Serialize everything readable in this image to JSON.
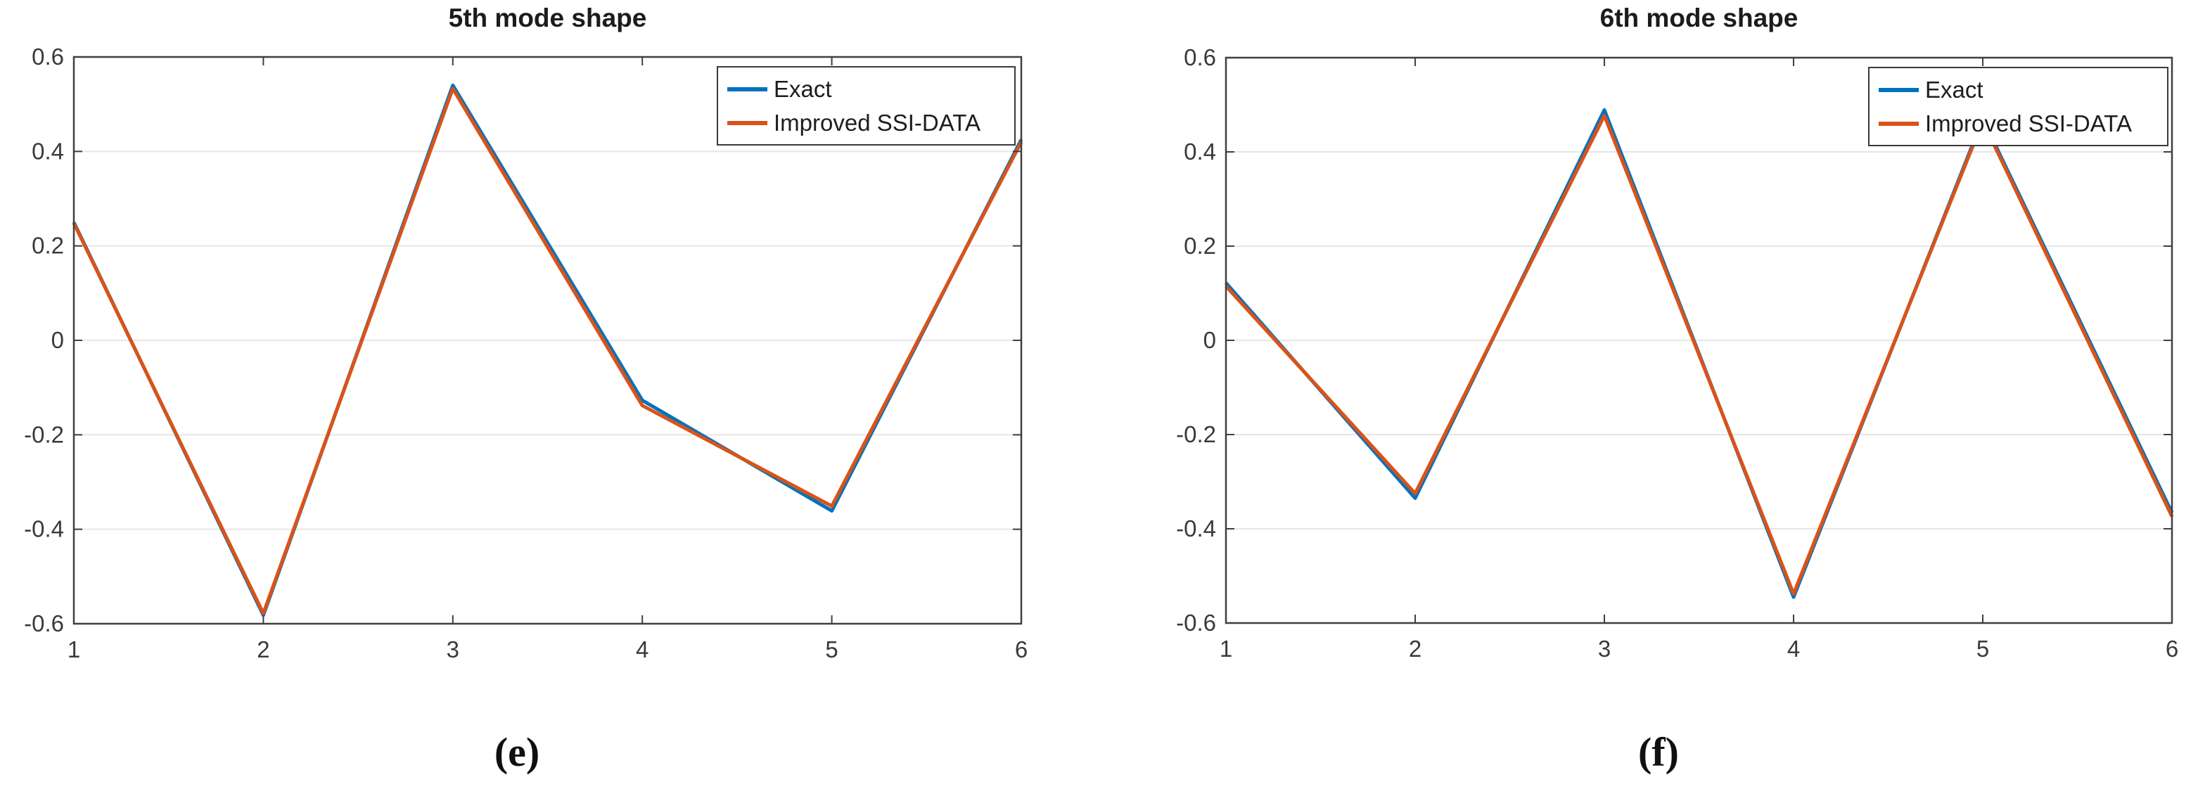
{
  "page": {
    "background": "#ffffff"
  },
  "chart_data": [
    {
      "type": "line",
      "title": "5th mode shape",
      "caption": "(e)",
      "x": [
        1,
        2,
        3,
        4,
        5,
        6
      ],
      "xlim": [
        1,
        6
      ],
      "ylim": [
        -0.6,
        0.6
      ],
      "xtick_labels": [
        "1",
        "2",
        "3",
        "4",
        "5",
        "6"
      ],
      "yticks": [
        0.6,
        0.4,
        0.2,
        0,
        -0.2,
        -0.4,
        -0.6
      ],
      "ytick_labels": [
        "0.6",
        "0.4",
        "0.2",
        "0",
        "-0.2",
        "-0.4",
        "-0.6"
      ],
      "grid": "horizontal-only",
      "legend_position": "top-right",
      "series": [
        {
          "name": "Exact",
          "color": "#0072BD",
          "values": [
            0.25,
            -0.582,
            0.54,
            -0.127,
            -0.361,
            0.425
          ]
        },
        {
          "name": "Improved SSI-DATA",
          "color": "#D95319",
          "values": [
            0.248,
            -0.578,
            0.533,
            -0.138,
            -0.351,
            0.42
          ]
        }
      ]
    },
    {
      "type": "line",
      "title": "6th mode shape",
      "caption": "(f)",
      "x": [
        1,
        2,
        3,
        4,
        5,
        6
      ],
      "xlim": [
        1,
        6
      ],
      "ylim": [
        -0.6,
        0.6
      ],
      "xtick_labels": [
        "1",
        "2",
        "3",
        "4",
        "5",
        "6"
      ],
      "yticks": [
        0.6,
        0.4,
        0.2,
        0,
        -0.2,
        -0.4,
        -0.6
      ],
      "ytick_labels": [
        "0.6",
        "0.4",
        "0.2",
        "0",
        "-0.2",
        "-0.4",
        "-0.6"
      ],
      "grid": "horizontal-only",
      "legend_position": "top-right",
      "series": [
        {
          "name": "Exact",
          "color": "#0072BD",
          "values": [
            0.122,
            -0.335,
            0.489,
            -0.545,
            0.47,
            -0.366
          ]
        },
        {
          "name": "Improved SSI-DATA",
          "color": "#D95319",
          "values": [
            0.115,
            -0.325,
            0.477,
            -0.538,
            0.465,
            -0.374
          ]
        }
      ]
    }
  ],
  "style_colors": {
    "axis": "#3f3f3f",
    "grid": "#e6e6e6",
    "tick_label": "#3a3a3a",
    "title": "#1c1c1c"
  }
}
